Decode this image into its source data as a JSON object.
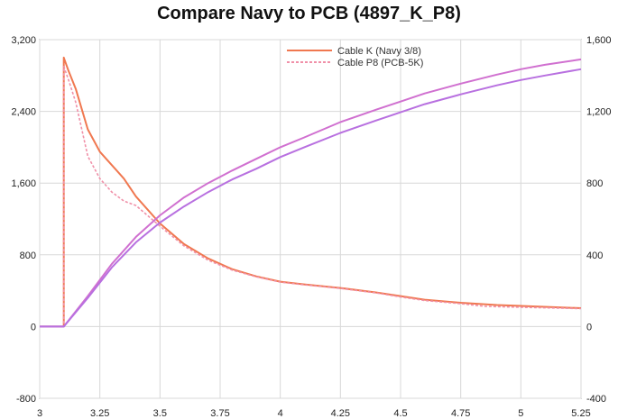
{
  "chart_data": {
    "type": "line",
    "title": "Compare Navy to PCB (4897_K_P8)",
    "xlabel": "",
    "ylabel": "",
    "y2label": "",
    "xlim": [
      3,
      5.25
    ],
    "ylim": [
      -800,
      3200
    ],
    "y2lim": [
      -400,
      1600
    ],
    "x_ticks": [
      "3",
      "3.25",
      "3.5",
      "3.75",
      "4",
      "4.25",
      "4.5",
      "4.75",
      "5",
      "5.25"
    ],
    "y_ticks": [
      "-800",
      "0",
      "800",
      "1,600",
      "2,400",
      "3,200"
    ],
    "y2_ticks": [
      "-400",
      "0",
      "400",
      "800",
      "1,200",
      "1,600"
    ],
    "grid": true,
    "legend_position": "top-center",
    "colors": {
      "cable_k": "#f07850",
      "cable_p8": "#f090a8",
      "cable_k_cumulative": "#d070d0",
      "cable_p8_cumulative": "#b870e0"
    },
    "series": [
      {
        "name": "Cable K (Navy 3/8)",
        "axis": "left",
        "style": "solid",
        "points": [
          [
            3.0,
            0
          ],
          [
            3.1,
            0
          ],
          [
            3.1,
            3000
          ],
          [
            3.12,
            2850
          ],
          [
            3.15,
            2650
          ],
          [
            3.2,
            2200
          ],
          [
            3.25,
            1950
          ],
          [
            3.3,
            1800
          ],
          [
            3.35,
            1650
          ],
          [
            3.4,
            1450
          ],
          [
            3.5,
            1150
          ],
          [
            3.6,
            920
          ],
          [
            3.7,
            760
          ],
          [
            3.8,
            640
          ],
          [
            3.9,
            560
          ],
          [
            4.0,
            500
          ],
          [
            4.1,
            470
          ],
          [
            4.25,
            430
          ],
          [
            4.4,
            380
          ],
          [
            4.5,
            340
          ],
          [
            4.6,
            300
          ],
          [
            4.75,
            265
          ],
          [
            4.9,
            240
          ],
          [
            5.0,
            230
          ],
          [
            5.25,
            205
          ]
        ]
      },
      {
        "name": "Cable P8 (PCB-5K)",
        "axis": "left",
        "style": "dotted",
        "points": [
          [
            3.0,
            0
          ],
          [
            3.1,
            0
          ],
          [
            3.1,
            2900
          ],
          [
            3.12,
            2750
          ],
          [
            3.15,
            2500
          ],
          [
            3.2,
            1900
          ],
          [
            3.25,
            1650
          ],
          [
            3.3,
            1500
          ],
          [
            3.35,
            1400
          ],
          [
            3.4,
            1350
          ],
          [
            3.5,
            1120
          ],
          [
            3.6,
            900
          ],
          [
            3.7,
            740
          ],
          [
            3.8,
            630
          ],
          [
            3.9,
            555
          ],
          [
            4.0,
            495
          ],
          [
            4.1,
            465
          ],
          [
            4.25,
            425
          ],
          [
            4.4,
            375
          ],
          [
            4.5,
            330
          ],
          [
            4.6,
            290
          ],
          [
            4.75,
            255
          ],
          [
            4.85,
            225
          ],
          [
            5.0,
            215
          ],
          [
            5.25,
            200
          ]
        ]
      },
      {
        "axis": "right",
        "style": "solid",
        "points": [
          [
            3.0,
            0
          ],
          [
            3.1,
            0
          ],
          [
            3.2,
            170
          ],
          [
            3.3,
            350
          ],
          [
            3.4,
            500
          ],
          [
            3.5,
            620
          ],
          [
            3.6,
            720
          ],
          [
            3.7,
            800
          ],
          [
            3.8,
            870
          ],
          [
            3.9,
            935
          ],
          [
            4.0,
            1000
          ],
          [
            4.1,
            1055
          ],
          [
            4.25,
            1140
          ],
          [
            4.4,
            1210
          ],
          [
            4.5,
            1255
          ],
          [
            4.6,
            1300
          ],
          [
            4.75,
            1355
          ],
          [
            4.9,
            1405
          ],
          [
            5.0,
            1435
          ],
          [
            5.1,
            1460
          ],
          [
            5.25,
            1490
          ]
        ]
      },
      {
        "axis": "right",
        "style": "solid",
        "points": [
          [
            3.0,
            0
          ],
          [
            3.1,
            0
          ],
          [
            3.2,
            160
          ],
          [
            3.3,
            330
          ],
          [
            3.4,
            470
          ],
          [
            3.5,
            580
          ],
          [
            3.6,
            670
          ],
          [
            3.7,
            750
          ],
          [
            3.8,
            820
          ],
          [
            3.9,
            880
          ],
          [
            4.0,
            945
          ],
          [
            4.1,
            1000
          ],
          [
            4.25,
            1080
          ],
          [
            4.4,
            1150
          ],
          [
            4.5,
            1195
          ],
          [
            4.6,
            1240
          ],
          [
            4.75,
            1295
          ],
          [
            4.9,
            1345
          ],
          [
            5.0,
            1375
          ],
          [
            5.1,
            1400
          ],
          [
            5.25,
            1435
          ]
        ]
      }
    ]
  }
}
